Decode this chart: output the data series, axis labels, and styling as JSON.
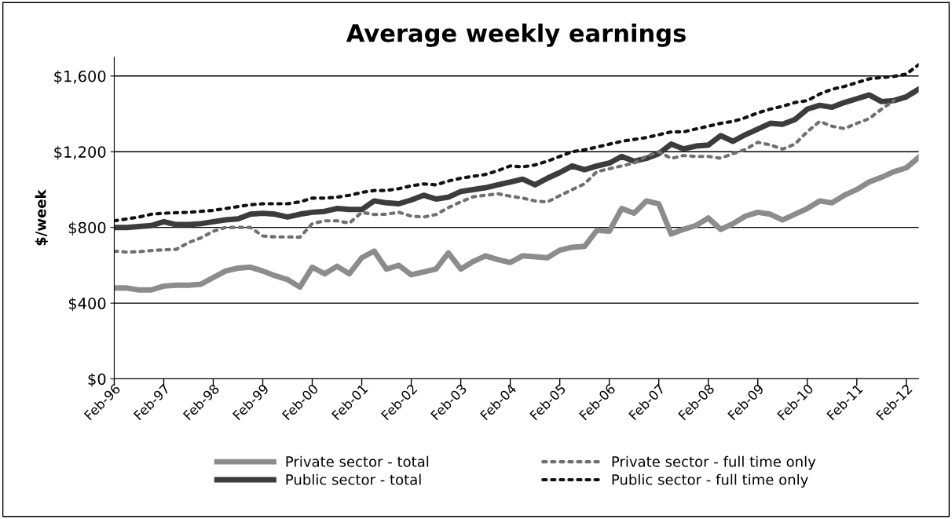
{
  "chart_data": {
    "type": "line",
    "title": "Average weekly earnings",
    "ylabel": "$/week",
    "categories": [
      "Feb-96",
      null,
      null,
      null,
      "Feb-97",
      null,
      null,
      null,
      "Feb-98",
      null,
      null,
      null,
      "Feb-99",
      null,
      null,
      null,
      "Feb-00",
      null,
      null,
      null,
      "Feb-01",
      null,
      null,
      null,
      "Feb-02",
      null,
      null,
      null,
      "Feb-03",
      null,
      null,
      null,
      "Feb-04",
      null,
      null,
      null,
      "Feb-05",
      null,
      null,
      null,
      "Feb-06",
      null,
      null,
      null,
      "Feb-07",
      null,
      null,
      null,
      "Feb-08",
      null,
      null,
      null,
      "Feb-09",
      null,
      null,
      null,
      "Feb-10",
      null,
      null,
      null,
      "Feb-11",
      null,
      null,
      null,
      "Feb-12",
      null
    ],
    "ylim": [
      0,
      1700
    ],
    "yticks": [
      {
        "value": 0,
        "label": "$0"
      },
      {
        "value": 400,
        "label": "$400"
      },
      {
        "value": 800,
        "label": "$800"
      },
      {
        "value": 1200,
        "label": "$1,200"
      },
      {
        "value": 1600,
        "label": "$1,600"
      }
    ],
    "grid": "y",
    "legend": "bottom",
    "marker": "none",
    "series": [
      {
        "name": "Private sector - total",
        "color": "#8c8c8c",
        "line_style": "solid",
        "values": [
          480,
          480,
          470,
          470,
          490,
          495,
          495,
          500,
          535,
          570,
          585,
          590,
          570,
          545,
          525,
          485,
          590,
          555,
          595,
          555,
          640,
          675,
          580,
          600,
          550,
          565,
          580,
          665,
          580,
          620,
          650,
          630,
          615,
          650,
          645,
          640,
          680,
          695,
          700,
          785,
          780,
          900,
          875,
          940,
          925,
          765,
          790,
          810,
          850,
          790,
          820,
          860,
          880,
          870,
          840,
          870,
          900,
          940,
          930,
          970,
          1000,
          1040,
          1065,
          1095,
          1115,
          1170
        ]
      },
      {
        "name": "Public sector - total",
        "color": "#3c3c3c",
        "line_style": "solid",
        "values": [
          800,
          800,
          805,
          810,
          830,
          815,
          815,
          820,
          830,
          840,
          845,
          870,
          875,
          870,
          855,
          870,
          880,
          885,
          900,
          895,
          895,
          940,
          930,
          925,
          945,
          970,
          950,
          960,
          990,
          1000,
          1010,
          1025,
          1040,
          1055,
          1025,
          1060,
          1090,
          1125,
          1105,
          1125,
          1140,
          1175,
          1150,
          1165,
          1190,
          1240,
          1215,
          1230,
          1235,
          1285,
          1255,
          1290,
          1320,
          1350,
          1345,
          1370,
          1425,
          1445,
          1435,
          1460,
          1480,
          1500,
          1465,
          1470,
          1490,
          1530
        ]
      },
      {
        "name": "Private sector - full time only",
        "color": "#707070",
        "line_style": "dotted",
        "values": [
          675,
          670,
          672,
          678,
          682,
          684,
          720,
          745,
          780,
          800,
          800,
          800,
          755,
          750,
          750,
          748,
          820,
          835,
          835,
          823,
          880,
          868,
          870,
          880,
          860,
          855,
          868,
          905,
          935,
          962,
          970,
          978,
          965,
          955,
          940,
          935,
          968,
          1000,
          1030,
          1095,
          1110,
          1125,
          1140,
          1175,
          1200,
          1165,
          1180,
          1175,
          1175,
          1166,
          1190,
          1212,
          1250,
          1236,
          1214,
          1240,
          1306,
          1360,
          1335,
          1322,
          1350,
          1375,
          1425,
          1470,
          null,
          null
        ]
      },
      {
        "name": "Public sector - full time only",
        "color": "#111111",
        "line_style": "dotted",
        "values": [
          835,
          845,
          855,
          870,
          875,
          878,
          880,
          885,
          890,
          900,
          910,
          920,
          925,
          925,
          925,
          935,
          955,
          955,
          960,
          970,
          985,
          995,
          995,
          1005,
          1020,
          1030,
          1025,
          1045,
          1060,
          1070,
          1080,
          1100,
          1125,
          1120,
          1130,
          1150,
          1175,
          1200,
          1210,
          1225,
          1240,
          1255,
          1265,
          1275,
          1290,
          1305,
          1305,
          1320,
          1335,
          1350,
          1360,
          1380,
          1405,
          1425,
          1440,
          1460,
          1470,
          1505,
          1530,
          1545,
          1565,
          1585,
          1592,
          1598,
          1610,
          1660
        ]
      }
    ]
  }
}
